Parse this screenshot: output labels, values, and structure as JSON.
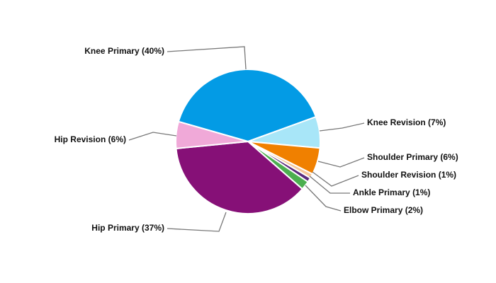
{
  "chart_data": {
    "type": "pie",
    "categories": [
      "Knee Primary",
      "Knee Revision",
      "Shoulder Primary",
      "Shoulder Revision",
      "Ankle Primary",
      "Elbow Primary",
      "Hip Primary",
      "Hip Revision"
    ],
    "values": [
      40,
      7,
      6,
      1,
      1,
      2,
      37,
      6
    ],
    "value_labels": [
      "(40%)",
      "(7%)",
      "(6%)",
      "(1%)",
      "(1%)",
      "(2%)",
      "(37%)",
      "(6%)"
    ],
    "colors": [
      "#039be5",
      "#a8e6f8",
      "#f08000",
      "#f6c79a",
      "#5b2b7d",
      "#4caf50",
      "#861077",
      "#f0a9d8"
    ]
  }
}
